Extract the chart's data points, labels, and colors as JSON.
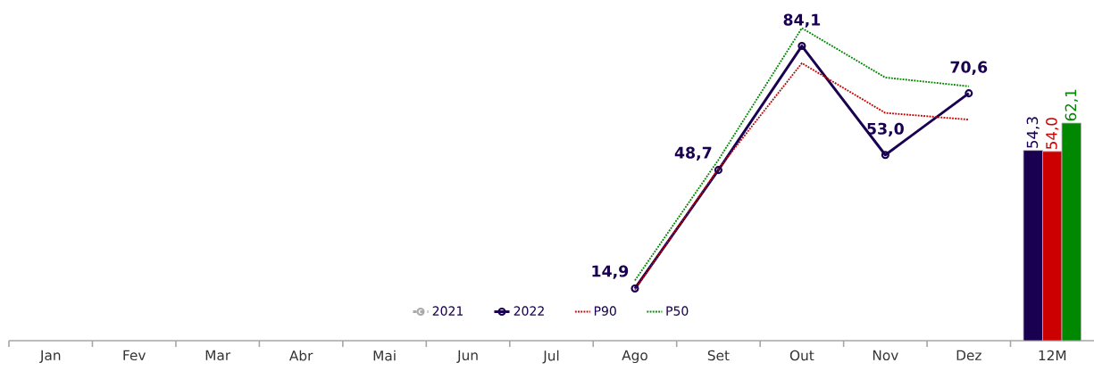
{
  "chart_data": {
    "type": "line",
    "categories": [
      "Jan",
      "Fev",
      "Mar",
      "Abr",
      "Mai",
      "Jun",
      "Jul",
      "Ago",
      "Set",
      "Out",
      "Nov",
      "Dez",
      "12M"
    ],
    "tick_labels": "x",
    "legend": "bottom",
    "grid": false,
    "series": [
      {
        "name": "2021",
        "color": "#aaaaaa",
        "line_style": "dashed",
        "marker": "circle",
        "values": [
          null,
          null,
          null,
          null,
          null,
          null,
          null,
          null,
          null,
          null,
          null,
          null,
          null
        ]
      },
      {
        "name": "2022",
        "color": "#1a0050",
        "line_style": "solid",
        "marker": "circle",
        "values": [
          null,
          null,
          null,
          null,
          null,
          null,
          null,
          14.9,
          48.7,
          84.1,
          53.0,
          70.6,
          null
        ],
        "value_labels": [
          null,
          null,
          null,
          null,
          null,
          null,
          null,
          "14,9",
          "48,7",
          "84,1",
          "53,0",
          "70,6",
          null
        ]
      },
      {
        "name": "P90",
        "color": "#cc0000",
        "line_style": "dotted",
        "marker": "none",
        "values": [
          null,
          null,
          null,
          null,
          null,
          null,
          null,
          14.6,
          49.1,
          79.2,
          65.0,
          63.1,
          null
        ]
      },
      {
        "name": "P50",
        "color": "#008800",
        "line_style": "dotted",
        "marker": "none",
        "values": [
          null,
          null,
          null,
          null,
          null,
          null,
          null,
          17.2,
          51.6,
          89.2,
          75.1,
          72.6,
          null
        ]
      },
      {
        "type": "bar",
        "color": "#1a0050",
        "values": [
          null,
          null,
          null,
          null,
          null,
          null,
          null,
          null,
          null,
          null,
          null,
          null,
          54.3
        ],
        "value_labels": [
          null,
          null,
          null,
          null,
          null,
          null,
          null,
          null,
          null,
          null,
          null,
          null,
          "54,3"
        ]
      },
      {
        "type": "bar",
        "color": "#cc0000",
        "values": [
          null,
          null,
          null,
          null,
          null,
          null,
          null,
          null,
          null,
          null,
          null,
          null,
          54.0
        ],
        "value_labels": [
          null,
          null,
          null,
          null,
          null,
          null,
          null,
          null,
          null,
          null,
          null,
          null,
          "54,0"
        ]
      },
      {
        "type": "bar",
        "color": "#008800",
        "values": [
          null,
          null,
          null,
          null,
          null,
          null,
          null,
          null,
          null,
          null,
          null,
          null,
          62.1
        ],
        "value_labels": [
          null,
          null,
          null,
          null,
          null,
          null,
          null,
          null,
          null,
          null,
          null,
          null,
          "62,1"
        ]
      }
    ]
  }
}
